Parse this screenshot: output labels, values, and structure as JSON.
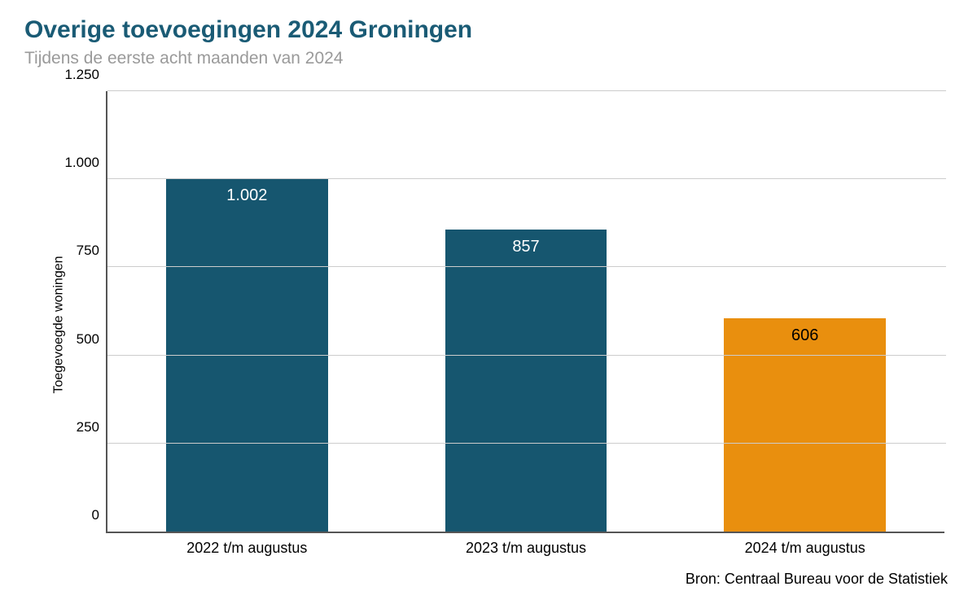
{
  "title": {
    "text": "Overige toevoegingen 2024 Groningen",
    "color": "#1a5b75",
    "fontsize": 30
  },
  "subtitle": {
    "text": "Tijdens de eerste acht maanden van 2024",
    "color": "#9a9a9a",
    "fontsize": 21
  },
  "chart": {
    "type": "bar",
    "ylabel": "Toegevoegde woningen",
    "ylabel_fontsize": 16,
    "ylabel_color": "#000000",
    "ylim": [
      0,
      1250
    ],
    "ytick_step": 250,
    "yticks": [
      {
        "value": 0,
        "label": "0"
      },
      {
        "value": 250,
        "label": "250"
      },
      {
        "value": 500,
        "label": "500"
      },
      {
        "value": 750,
        "label": "750"
      },
      {
        "value": 1000,
        "label": "1.000"
      },
      {
        "value": 1250,
        "label": "1.250"
      }
    ],
    "grid_color": "#cccccc",
    "axis_color": "#555555",
    "background_color": "#ffffff",
    "tick_fontsize": 17,
    "xtick_fontsize": 18,
    "bar_width": 0.58,
    "bars": [
      {
        "category": "2022 t/m augustus",
        "value": 1002,
        "value_label": "1.002",
        "color": "#16566f",
        "label_color": "#ffffff"
      },
      {
        "category": "2023 t/m augustus",
        "value": 857,
        "value_label": "857",
        "color": "#16566f",
        "label_color": "#ffffff"
      },
      {
        "category": "2024 t/m augustus",
        "value": 606,
        "value_label": "606",
        "color": "#e98f0e",
        "label_color": "#000000"
      }
    ]
  },
  "source": {
    "text": "Bron: Centraal Bureau voor de Statistiek",
    "fontsize": 18,
    "color": "#000000"
  }
}
